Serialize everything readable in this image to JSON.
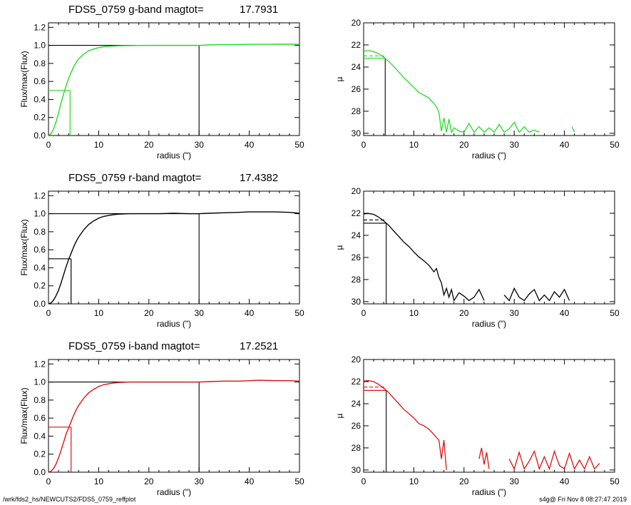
{
  "footer": {
    "left": "/wrk/fds2_hs/NEWCUTS2/FDS5_0759_reffplot",
    "right": "s4g@  Fri Nov  8 08:27:47 2019"
  },
  "chart_data": [
    {
      "type": "line",
      "title": "FDS5_0759 g-band  magtot=",
      "title_value": "17.7931",
      "xlabel": "radius (\")",
      "ylabel": "Flux/max(Flux)",
      "xlim": [
        0,
        50
      ],
      "ylim": [
        0,
        1.25
      ],
      "xticks": [
        0,
        10,
        20,
        30,
        40,
        50
      ],
      "yticks": [
        "0.0",
        "0.2",
        "0.4",
        "0.6",
        "0.8",
        "1.0",
        "1.2"
      ],
      "color": "#22dd22",
      "x": [
        0,
        0.5,
        1,
        1.5,
        2,
        2.5,
        3,
        3.5,
        4,
        4.5,
        5,
        5.5,
        6,
        7,
        8,
        9,
        10,
        11,
        12,
        13,
        14,
        15,
        16,
        18,
        20,
        22,
        25,
        28,
        30,
        32,
        35,
        38,
        40,
        42,
        45,
        48,
        50
      ],
      "y": [
        0,
        0.02,
        0.07,
        0.15,
        0.25,
        0.36,
        0.46,
        0.55,
        0.63,
        0.7,
        0.76,
        0.81,
        0.85,
        0.9,
        0.94,
        0.96,
        0.975,
        0.985,
        0.99,
        0.993,
        0.995,
        0.997,
        0.998,
        0.999,
        1.0,
        1.0,
        1.0,
        1.0,
        1.0,
        1.005,
        1.008,
        1.01,
        1.012,
        1.012,
        1.013,
        1.013,
        1.012
      ],
      "half_light": {
        "radius": 4.3,
        "flux": 0.5
      },
      "total_radius": 30
    },
    {
      "type": "line",
      "xlabel": "radius (\")",
      "ylabel": "µ",
      "xlim": [
        0,
        50
      ],
      "ylim": [
        30.2,
        20
      ],
      "xticks": [
        0,
        10,
        20,
        30,
        40,
        50
      ],
      "yticks": [
        20,
        22,
        24,
        26,
        28,
        30
      ],
      "color": "#22dd22",
      "x": [
        0,
        1,
        2,
        3,
        4,
        5,
        6,
        7,
        8,
        9,
        10,
        11,
        12,
        13,
        14,
        14.5,
        15,
        15.5,
        16,
        16.5,
        17,
        17.5,
        18,
        19,
        20,
        21,
        22,
        23,
        24,
        25,
        26,
        27,
        28,
        29,
        30,
        31,
        32,
        33,
        34,
        35,
        41.5,
        42
      ],
      "y": [
        22.55,
        22.52,
        22.6,
        22.8,
        23.1,
        23.5,
        23.95,
        24.45,
        24.95,
        25.4,
        25.85,
        26.3,
        26.55,
        26.8,
        27.3,
        27.6,
        28.1,
        29.8,
        28.6,
        29.9,
        28.7,
        29.9,
        29.5,
        29.8,
        29.9,
        29.1,
        29.9,
        29.4,
        29.9,
        29.5,
        29.9,
        29.2,
        29.9,
        29.6,
        29.0,
        29.9,
        29.4,
        29.9,
        29.7,
        29.9,
        29.4,
        29.9
      ],
      "reff": 4.3,
      "mu_eff": 23.2,
      "mu_mean": 23.0,
      "mu_center": 22.5
    },
    {
      "type": "line",
      "title": "FDS5_0759 r-band  magtot=",
      "title_value": "17.4382",
      "xlabel": "radius (\")",
      "ylabel": "Flux/max(Flux)",
      "xlim": [
        0,
        50
      ],
      "ylim": [
        0,
        1.25
      ],
      "xticks": [
        0,
        10,
        20,
        30,
        40,
        50
      ],
      "yticks": [
        "0.0",
        "0.2",
        "0.4",
        "0.6",
        "0.8",
        "1.0",
        "1.2"
      ],
      "color": "#000000",
      "x": [
        0,
        0.5,
        1,
        1.5,
        2,
        2.5,
        3,
        3.5,
        4,
        4.5,
        5,
        5.5,
        6,
        7,
        8,
        9,
        10,
        11,
        12,
        13,
        14,
        15,
        16,
        18,
        20,
        22,
        25,
        28,
        30,
        32,
        35,
        38,
        40,
        42,
        45,
        48,
        50
      ],
      "y": [
        0,
        0.01,
        0.04,
        0.09,
        0.15,
        0.23,
        0.32,
        0.41,
        0.49,
        0.56,
        0.63,
        0.69,
        0.74,
        0.82,
        0.88,
        0.92,
        0.95,
        0.97,
        0.98,
        0.99,
        0.995,
        0.998,
        1.0,
        1.0,
        1.0,
        1.0,
        1.005,
        1.0,
        1.0,
        1.005,
        1.01,
        1.015,
        1.02,
        1.02,
        1.02,
        1.015,
        1.005
      ],
      "half_light": {
        "radius": 4.5,
        "flux": 0.5
      },
      "total_radius": 30
    },
    {
      "type": "line",
      "xlabel": "radius (\")",
      "ylabel": "µ",
      "xlim": [
        0,
        50
      ],
      "ylim": [
        30.2,
        20
      ],
      "xticks": [
        0,
        10,
        20,
        30,
        40,
        50
      ],
      "yticks": [
        20,
        22,
        24,
        26,
        28,
        30
      ],
      "color": "#000000",
      "x": [
        0,
        1,
        2,
        3,
        4,
        5,
        6,
        7,
        8,
        9,
        10,
        11,
        12,
        13,
        14,
        14.5,
        15,
        15.5,
        16,
        16.5,
        17,
        17.5,
        18,
        19,
        20,
        21,
        22,
        23,
        24,
        28,
        29,
        30,
        31,
        32,
        33,
        34,
        35,
        36,
        37,
        38,
        39,
        40,
        41
      ],
      "y": [
        22.05,
        22.02,
        22.1,
        22.35,
        22.7,
        23.1,
        23.6,
        24.1,
        24.6,
        25.0,
        25.5,
        25.95,
        26.3,
        26.7,
        27.3,
        27.0,
        27.8,
        28.3,
        29.4,
        28.8,
        29.6,
        28.9,
        29.9,
        29.2,
        29.5,
        29.9,
        29.6,
        28.9,
        29.9,
        29.4,
        29.9,
        28.8,
        29.6,
        29.9,
        29.3,
        28.9,
        29.9,
        29.4,
        29.9,
        29.1,
        29.6,
        28.9,
        29.9
      ],
      "reff": 4.5,
      "mu_eff": 22.9,
      "mu_mean": 22.6,
      "mu_center": 22.05
    },
    {
      "type": "line",
      "title": "FDS5_0759 i-band  magtot=",
      "title_value": "17.2521",
      "xlabel": "radius (\")",
      "ylabel": "Flux/max(Flux)",
      "xlim": [
        0,
        50
      ],
      "ylim": [
        0,
        1.25
      ],
      "xticks": [
        0,
        10,
        20,
        30,
        40,
        50
      ],
      "yticks": [
        "0.0",
        "0.2",
        "0.4",
        "0.6",
        "0.8",
        "1.0",
        "1.2"
      ],
      "color": "#dd1111",
      "x": [
        0,
        0.5,
        1,
        1.5,
        2,
        2.5,
        3,
        3.5,
        4,
        4.5,
        5,
        5.5,
        6,
        7,
        8,
        9,
        10,
        11,
        12,
        13,
        14,
        15,
        16,
        18,
        20,
        22,
        25,
        28,
        30,
        32,
        35,
        38,
        40,
        42,
        45,
        48,
        50
      ],
      "y": [
        0,
        0.01,
        0.04,
        0.09,
        0.16,
        0.24,
        0.33,
        0.42,
        0.49,
        0.56,
        0.63,
        0.69,
        0.74,
        0.82,
        0.88,
        0.92,
        0.95,
        0.97,
        0.98,
        0.99,
        0.995,
        0.998,
        1.0,
        1.0,
        1.0,
        1.0,
        1.0,
        1.0,
        1.0,
        1.005,
        1.01,
        1.01,
        1.015,
        1.02,
        1.015,
        1.015,
        1.01
      ],
      "half_light": {
        "radius": 4.5,
        "flux": 0.5
      },
      "total_radius": 30
    },
    {
      "type": "line",
      "xlabel": "radius (\")",
      "ylabel": "µ",
      "xlim": [
        0,
        50
      ],
      "ylim": [
        30.2,
        20
      ],
      "xticks": [
        0,
        10,
        20,
        30,
        40,
        50
      ],
      "yticks": [
        20,
        22,
        24,
        26,
        28,
        30
      ],
      "color": "#dd1111",
      "x": [
        0,
        1,
        2,
        3,
        4,
        5,
        6,
        7,
        8,
        9,
        10,
        11,
        12,
        13,
        14,
        15,
        15.5,
        16,
        16.5,
        23,
        23.5,
        24,
        24.5,
        25,
        29,
        30,
        31,
        32,
        33,
        34,
        35,
        36,
        37,
        38,
        39,
        40,
        41,
        42,
        43,
        44,
        45,
        46,
        47
      ],
      "y": [
        21.95,
        21.92,
        22.0,
        22.25,
        22.6,
        23.0,
        23.5,
        24.0,
        24.5,
        24.9,
        25.3,
        25.8,
        26.0,
        26.3,
        26.8,
        27.3,
        29.0,
        27.3,
        30.0,
        29.0,
        28.0,
        29.5,
        28.4,
        29.9,
        29.0,
        29.9,
        28.4,
        29.9,
        29.2,
        28.3,
        29.9,
        28.8,
        29.9,
        28.3,
        29.6,
        29.9,
        28.5,
        29.9,
        29.1,
        29.9,
        28.8,
        29.9,
        29.4
      ],
      "reff": 4.5,
      "mu_eff": 22.8,
      "mu_mean": 22.5,
      "mu_center": 21.95
    }
  ]
}
